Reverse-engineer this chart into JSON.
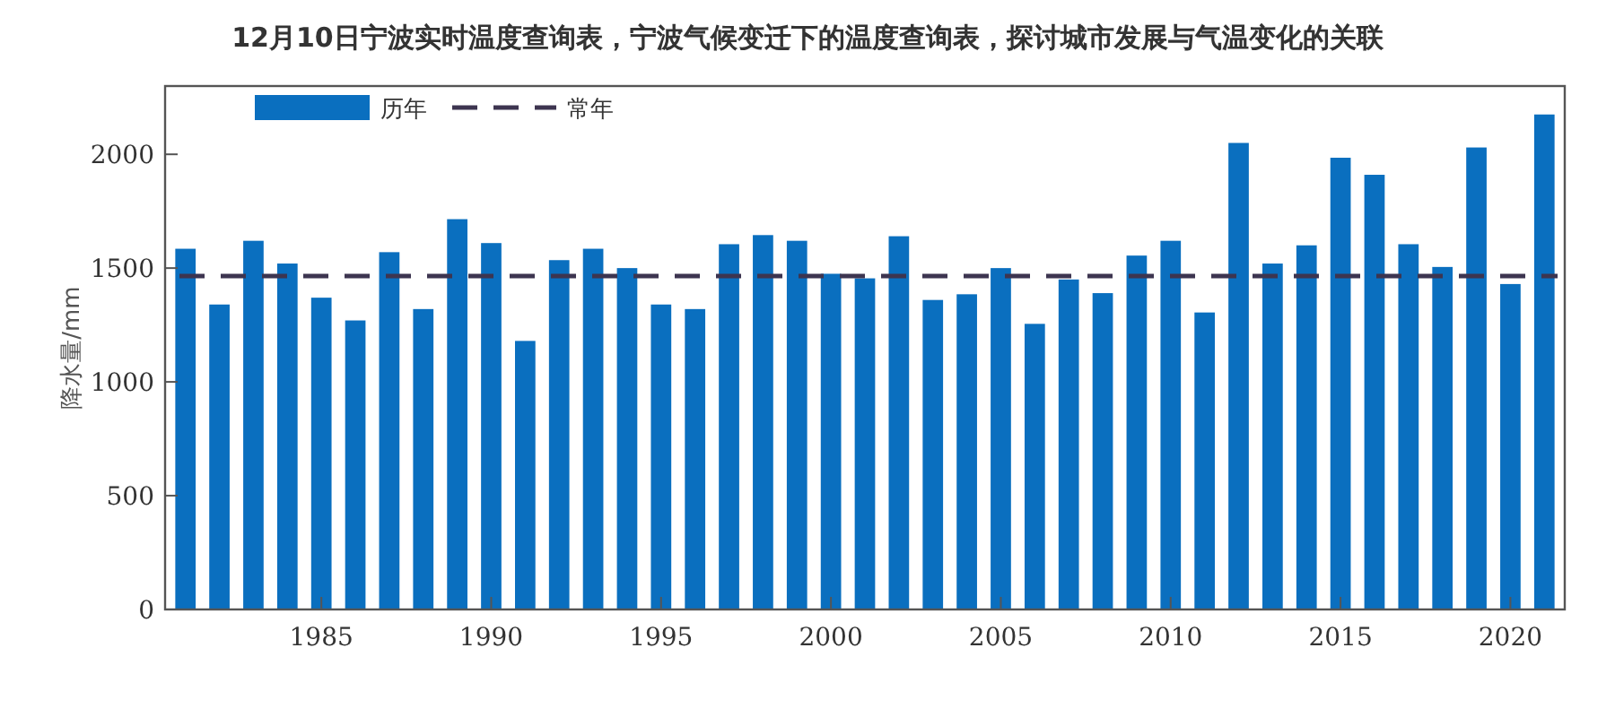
{
  "chart_data": {
    "type": "bar",
    "title": "12月10日宁波实时温度查询表，宁波气候变迁下的温度查询表，探讨城市发展与气温变化的关联",
    "ylabel": "降水量/mm",
    "x": [
      1981,
      1982,
      1983,
      1984,
      1985,
      1986,
      1987,
      1988,
      1989,
      1990,
      1991,
      1992,
      1993,
      1994,
      1995,
      1996,
      1997,
      1998,
      1999,
      2000,
      2001,
      2002,
      2003,
      2004,
      2005,
      2006,
      2007,
      2008,
      2009,
      2010,
      2011,
      2012,
      2013,
      2014,
      2015,
      2016,
      2017,
      2018,
      2019,
      2020,
      2021
    ],
    "series": [
      {
        "name": "历年",
        "color": "#0a6fbf",
        "values": [
          1585,
          1340,
          1620,
          1520,
          1370,
          1270,
          1570,
          1320,
          1715,
          1610,
          1180,
          1535,
          1585,
          1500,
          1340,
          1320,
          1605,
          1645,
          1620,
          1475,
          1455,
          1640,
          1360,
          1385,
          1500,
          1255,
          1450,
          1390,
          1555,
          1620,
          1305,
          2050,
          1520,
          1600,
          1985,
          1910,
          1605,
          1505,
          2030,
          1430,
          2175
        ]
      }
    ],
    "ref_lines": [
      {
        "axis": "y",
        "value": 1465,
        "label": "常年",
        "color": "#3d3550",
        "line_style": "dashed"
      }
    ],
    "xlim": [
      1980.4,
      2021.6
    ],
    "xticks": [
      1985,
      1990,
      1995,
      2000,
      2005,
      2010,
      2015,
      2020
    ],
    "ylim": [
      0,
      2300
    ],
    "yticks": [
      0,
      500,
      1000,
      1500,
      2000
    ],
    "grid": false,
    "legend": "top left"
  }
}
